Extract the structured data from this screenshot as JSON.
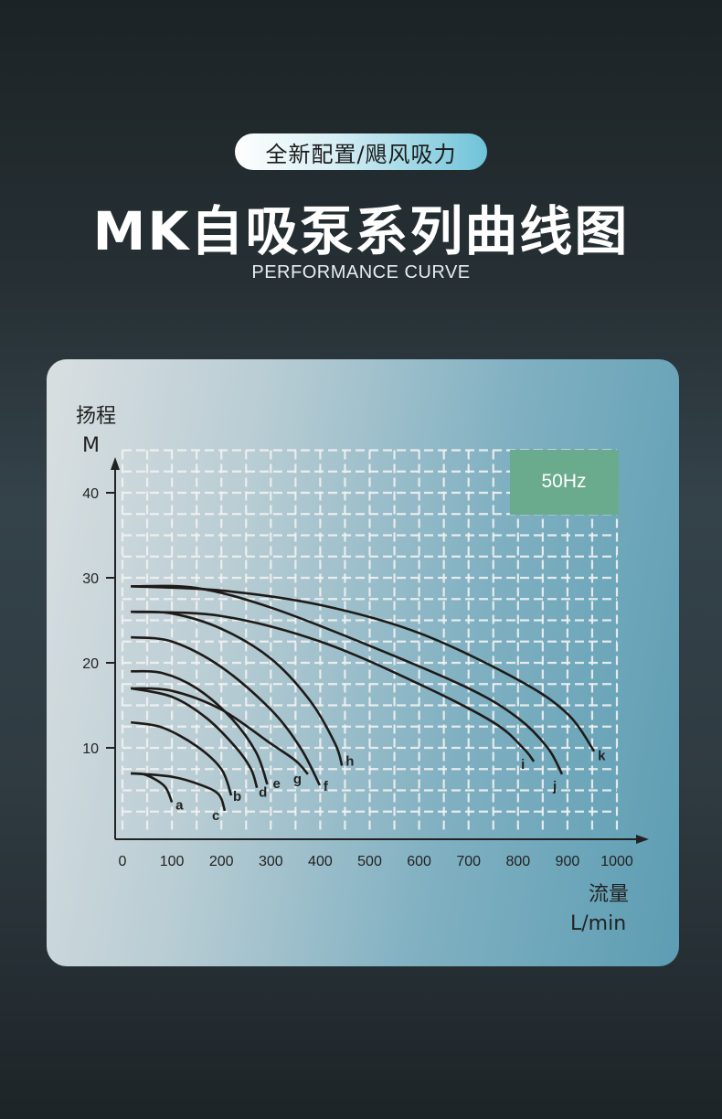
{
  "header": {
    "tag": "全新配置/飓风吸力",
    "title": "MK自吸泵系列曲线图",
    "subtitle": "PERFORMANCE CURVE"
  },
  "colors": {
    "background": "#263034",
    "badge": "#6aab8e",
    "curve": "#1e1a18",
    "grid": "#f2f2f2"
  },
  "chart_data": {
    "type": "line",
    "title": "",
    "badge": "50Hz",
    "ylabel": "扬程",
    "yunit": "M",
    "xlabel": "流量",
    "xunit": "L/min",
    "xlim": [
      0,
      1000
    ],
    "ylim": [
      0,
      45
    ],
    "xticks": [
      "0",
      "100",
      "200",
      "300",
      "400",
      "500",
      "600",
      "700",
      "800",
      "900",
      "1000"
    ],
    "yticks": [
      "10",
      "20",
      "30",
      "40"
    ],
    "grid": true,
    "series": [
      {
        "name": "a",
        "points": [
          [
            17,
            7
          ],
          [
            48,
            6.8
          ],
          [
            85,
            5.5
          ],
          [
            100,
            3.6
          ]
        ]
      },
      {
        "name": "c",
        "points": [
          [
            17,
            7
          ],
          [
            100,
            6.6
          ],
          [
            160,
            5.6
          ],
          [
            195,
            4.5
          ],
          [
            207,
            2.6
          ]
        ]
      },
      {
        "name": "b",
        "points": [
          [
            17,
            13
          ],
          [
            80,
            12.4
          ],
          [
            150,
            10.2
          ],
          [
            200,
            7.5
          ],
          [
            220,
            4.4
          ]
        ]
      },
      {
        "name": "d",
        "points": [
          [
            17,
            17
          ],
          [
            100,
            16
          ],
          [
            170,
            13.5
          ],
          [
            230,
            10
          ],
          [
            260,
            7.5
          ],
          [
            272,
            5.3
          ]
        ]
      },
      {
        "name": "e",
        "points": [
          [
            17,
            19
          ],
          [
            80,
            18.8
          ],
          [
            150,
            17
          ],
          [
            220,
            13.5
          ],
          [
            270,
            9.5
          ],
          [
            293,
            5.7
          ]
        ]
      },
      {
        "name": "g",
        "points": [
          [
            17,
            17
          ],
          [
            100,
            16.7
          ],
          [
            200,
            14.5
          ],
          [
            300,
            10.5
          ],
          [
            350,
            8.5
          ],
          [
            375,
            6.9
          ]
        ]
      },
      {
        "name": "f",
        "points": [
          [
            17,
            23
          ],
          [
            100,
            22.5
          ],
          [
            200,
            19.5
          ],
          [
            300,
            14.5
          ],
          [
            360,
            10
          ],
          [
            399,
            5.6
          ]
        ]
      },
      {
        "name": "h",
        "points": [
          [
            17,
            26
          ],
          [
            100,
            25.8
          ],
          [
            200,
            24
          ],
          [
            300,
            20.5
          ],
          [
            380,
            15.5
          ],
          [
            430,
            10.5
          ],
          [
            444,
            7.9
          ]
        ]
      },
      {
        "name": "i",
        "points": [
          [
            17,
            26
          ],
          [
            200,
            25.5
          ],
          [
            400,
            22.5
          ],
          [
            600,
            17.5
          ],
          [
            750,
            13
          ],
          [
            810,
            10
          ],
          [
            832,
            8.4
          ]
        ]
      },
      {
        "name": "j",
        "points": [
          [
            17,
            29
          ],
          [
            150,
            28.8
          ],
          [
            300,
            26.5
          ],
          [
            500,
            22
          ],
          [
            700,
            17
          ],
          [
            800,
            13.5
          ],
          [
            860,
            10
          ],
          [
            889,
            6.9
          ]
        ]
      },
      {
        "name": "k",
        "points": [
          [
            17,
            29
          ],
          [
            200,
            28.5
          ],
          [
            400,
            26.8
          ],
          [
            600,
            23.5
          ],
          [
            800,
            18
          ],
          [
            900,
            14
          ],
          [
            954,
            9.6
          ]
        ]
      }
    ]
  }
}
